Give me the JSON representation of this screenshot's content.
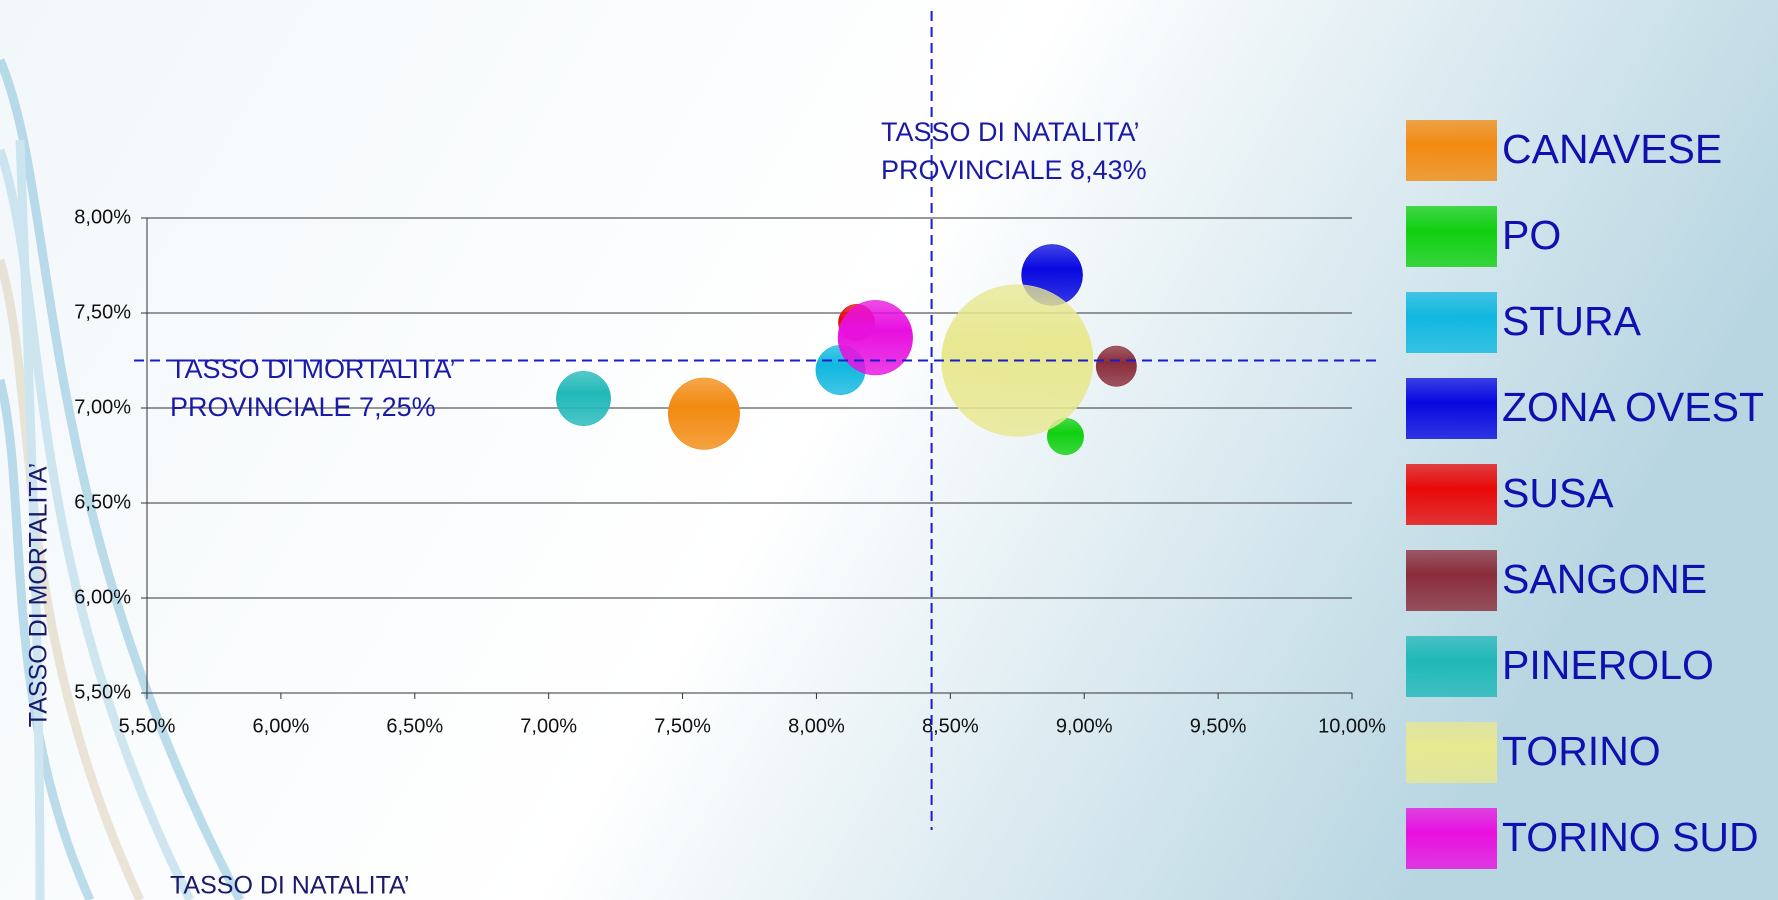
{
  "chart_data": {
    "type": "bubble",
    "x_label": "TASSO DI NATALITA’",
    "y_label": "TASSO DI MORTALITA’",
    "xlim": [
      5.5,
      10
    ],
    "ylim": [
      5.5,
      8
    ],
    "xticks": [
      {
        "value": 5.5,
        "label": "5,50%"
      },
      {
        "value": 6,
        "label": "6,00%"
      },
      {
        "value": 6.5,
        "label": "6,50%"
      },
      {
        "value": 7,
        "label": "7,00%"
      },
      {
        "value": 7.5,
        "label": "7,50%"
      },
      {
        "value": 8,
        "label": "8,00%"
      },
      {
        "value": 8.5,
        "label": "8,50%"
      },
      {
        "value": 9,
        "label": "9,00%"
      },
      {
        "value": 9.5,
        "label": "9,50%"
      },
      {
        "value": 10,
        "label": "10,00%"
      }
    ],
    "yticks": [
      {
        "value": 5.5,
        "label": "5,50%"
      },
      {
        "value": 6,
        "label": "6,00%"
      },
      {
        "value": 6.5,
        "label": "6,50%"
      },
      {
        "value": 7,
        "label": "7,00%"
      },
      {
        "value": 7.5,
        "label": "7,50%"
      },
      {
        "value": 8,
        "label": "8,00%"
      }
    ],
    "grid": true,
    "reference_lines": [
      {
        "axis": "x",
        "value": 8.43,
        "lines": [
          "TASSO DI NATALITA’",
          "PROVINCIALE 8,43%"
        ]
      },
      {
        "axis": "y",
        "value": 7.25,
        "lines": [
          "TASSO DI MORTALITA’",
          "PROVINCIALE 7,25%"
        ]
      }
    ],
    "series": [
      {
        "name": "CANAVESE",
        "color": "#f28a10",
        "x": 7.58,
        "y": 6.97,
        "size": 10
      },
      {
        "name": "PO",
        "color": "#10d010",
        "x": 8.93,
        "y": 6.85,
        "size": 2.6
      },
      {
        "name": "STURA",
        "color": "#10b8e0",
        "x": 8.09,
        "y": 7.2,
        "size": 4.8
      },
      {
        "name": "ZONA OVEST",
        "color": "#0808e0",
        "x": 8.88,
        "y": 7.7,
        "size": 7.3
      },
      {
        "name": "SUSA",
        "color": "#e80808",
        "x": 8.15,
        "y": 7.45,
        "size": 2.6
      },
      {
        "name": "SANGONE",
        "color": "#8a2c3a",
        "x": 9.12,
        "y": 7.22,
        "size": 3.2
      },
      {
        "name": "PINEROLO",
        "color": "#20b8b8",
        "x": 7.13,
        "y": 7.05,
        "size": 5.8
      },
      {
        "name": "TORINO",
        "color": "#e8e890",
        "x": 8.75,
        "y": 7.25,
        "size": 45
      },
      {
        "name": "TORINO SUD",
        "color": "#e810e0",
        "x": 8.22,
        "y": 7.37,
        "size": 10.9
      }
    ]
  }
}
